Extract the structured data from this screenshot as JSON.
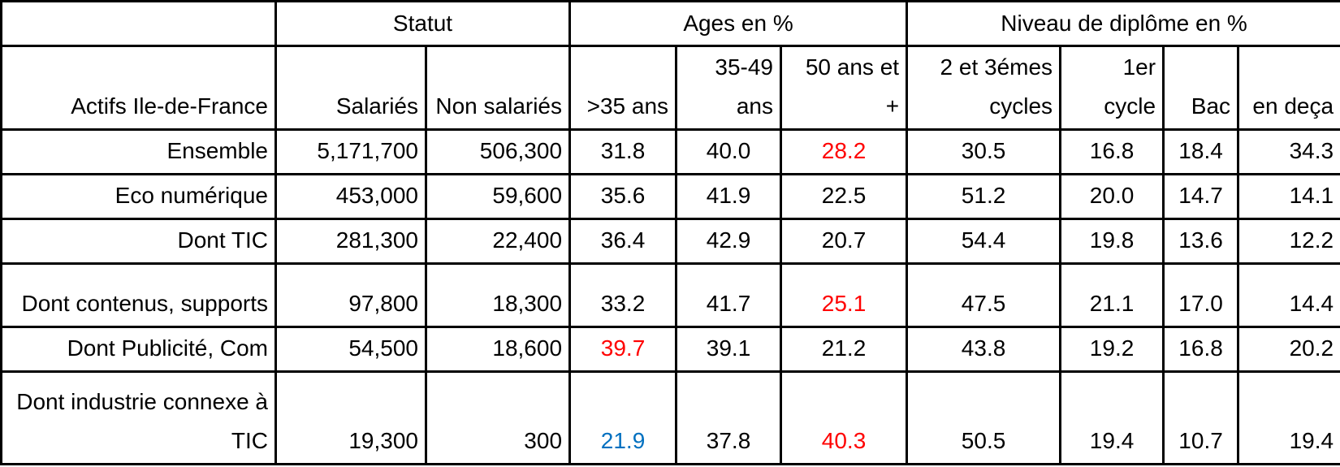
{
  "colors": {
    "highlight_red": "#ff0000",
    "highlight_blue": "#0070c0",
    "text": "#000000",
    "border": "#000000",
    "background": "#ffffff"
  },
  "chart_data": {
    "type": "table",
    "title": "Actifs Ile-de-France",
    "column_groups": [
      {
        "label": "Statut",
        "span": 2
      },
      {
        "label": "Ages en %",
        "span": 3
      },
      {
        "label": "Niveau de diplôme en %",
        "span": 4
      }
    ],
    "columns": [
      "Salariés",
      "Non salariés",
      ">35 ans",
      "35-49\nans",
      "50 ans et +",
      "2 et 3émes\ncycles",
      "1er\ncycle",
      "Bac",
      "en deça"
    ],
    "rows": [
      {
        "label": "Ensemble",
        "cells": [
          {
            "text": "5,171,700"
          },
          {
            "text": "506,300"
          },
          {
            "text": "31.8"
          },
          {
            "text": "40.0"
          },
          {
            "text": "28.2",
            "color": "#ff0000"
          },
          {
            "text": "30.5"
          },
          {
            "text": "16.8"
          },
          {
            "text": "18.4"
          },
          {
            "text": "34.3"
          }
        ]
      },
      {
        "label": "Eco numérique",
        "cells": [
          {
            "text": "453,000"
          },
          {
            "text": "59,600"
          },
          {
            "text": "35.6"
          },
          {
            "text": "41.9"
          },
          {
            "text": "22.5"
          },
          {
            "text": "51.2"
          },
          {
            "text": "20.0"
          },
          {
            "text": "14.7"
          },
          {
            "text": "14.1"
          }
        ]
      },
      {
        "label": "Dont TIC",
        "cells": [
          {
            "text": "281,300"
          },
          {
            "text": "22,400"
          },
          {
            "text": "36.4"
          },
          {
            "text": "42.9"
          },
          {
            "text": "20.7"
          },
          {
            "text": "54.4"
          },
          {
            "text": "19.8"
          },
          {
            "text": "13.6"
          },
          {
            "text": "12.2"
          }
        ]
      },
      {
        "label": "Dont contenus, supports",
        "cells": [
          {
            "text": "97,800"
          },
          {
            "text": "18,300"
          },
          {
            "text": "33.2"
          },
          {
            "text": "41.7"
          },
          {
            "text": "25.1",
            "color": "#ff0000"
          },
          {
            "text": "47.5"
          },
          {
            "text": "21.1"
          },
          {
            "text": "17.0"
          },
          {
            "text": "14.4"
          }
        ]
      },
      {
        "label": "Dont Publicité, Com",
        "cells": [
          {
            "text": "54,500"
          },
          {
            "text": "18,600"
          },
          {
            "text": "39.7",
            "color": "#ff0000"
          },
          {
            "text": "39.1"
          },
          {
            "text": "21.2"
          },
          {
            "text": "43.8"
          },
          {
            "text": "19.2"
          },
          {
            "text": "16.8"
          },
          {
            "text": "20.2"
          }
        ]
      },
      {
        "label": "Dont industrie connexe à\nTIC",
        "cells": [
          {
            "text": "19,300"
          },
          {
            "text": "300"
          },
          {
            "text": "21.9",
            "color": "#0070c0"
          },
          {
            "text": "37.8"
          },
          {
            "text": "40.3",
            "color": "#ff0000"
          },
          {
            "text": "50.5"
          },
          {
            "text": "19.4"
          },
          {
            "text": "10.7"
          },
          {
            "text": "19.4"
          }
        ]
      }
    ]
  }
}
